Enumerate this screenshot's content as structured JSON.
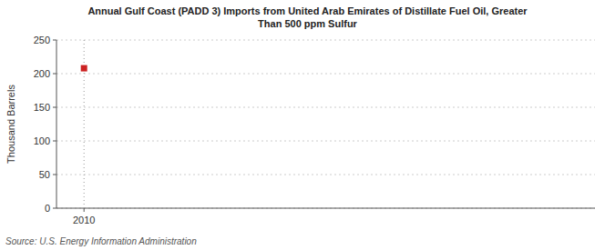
{
  "chart_data": {
    "type": "scatter",
    "title": "Annual Gulf Coast (PADD 3) Imports from United Arab Emirates of Distillate Fuel Oil, Greater\nThan 500 ppm Sulfur",
    "y_label": "Thousand Barrels",
    "source": "Source: U.S. Energy Information Administration",
    "x": [
      2010
    ],
    "values": [
      208
    ],
    "color": "#cc2222",
    "marker": "square",
    "vline": 2010,
    "xlim": [
      2009.3,
      2023
    ],
    "xticks": [
      2010
    ],
    "ylim": [
      0,
      250
    ],
    "yticks": [
      0,
      50,
      100,
      150,
      200,
      250
    ],
    "grid": true
  }
}
